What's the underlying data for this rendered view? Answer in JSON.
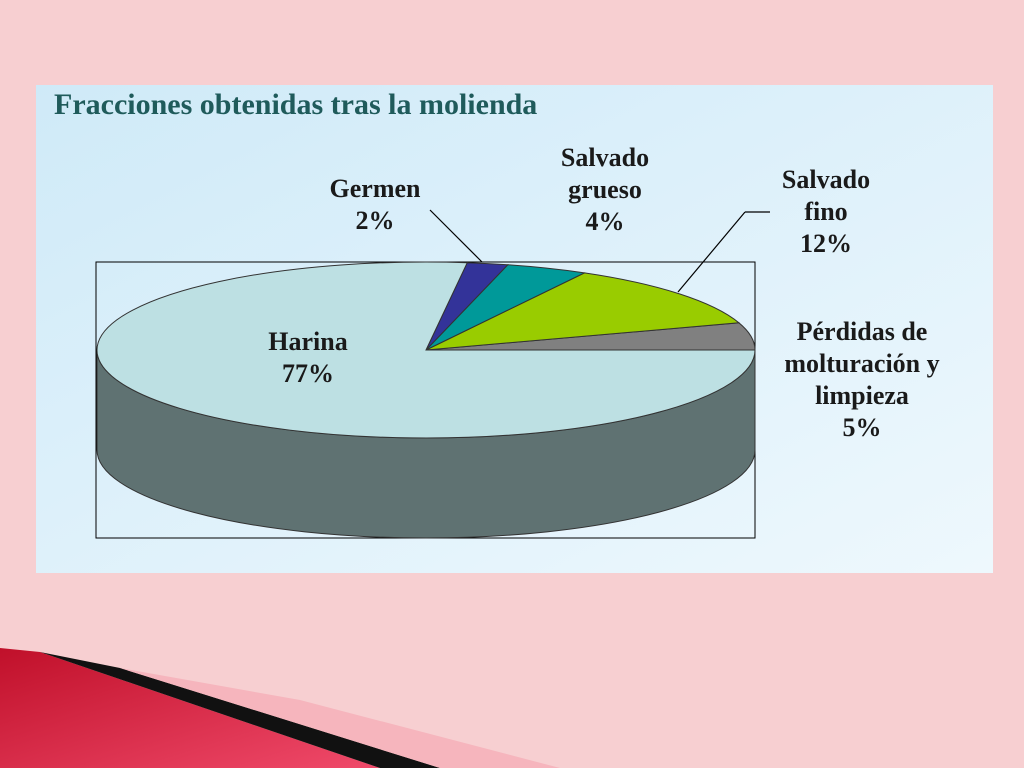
{
  "chart_data": {
    "type": "pie",
    "title": "Fracciones obtenidas tras la molienda",
    "categories": [
      "Pérdidas de molturación y limpieza",
      "Salvado fino",
      "Salvado grueso",
      "Germen",
      "Harina"
    ],
    "values": [
      5,
      12,
      4,
      2,
      77
    ],
    "value_labels": [
      "5%",
      "12%",
      "4%",
      "2%",
      "77%"
    ],
    "colors": [
      "#808080",
      "#99cc00",
      "#009999",
      "#333399",
      "#bde0e3"
    ]
  }
}
